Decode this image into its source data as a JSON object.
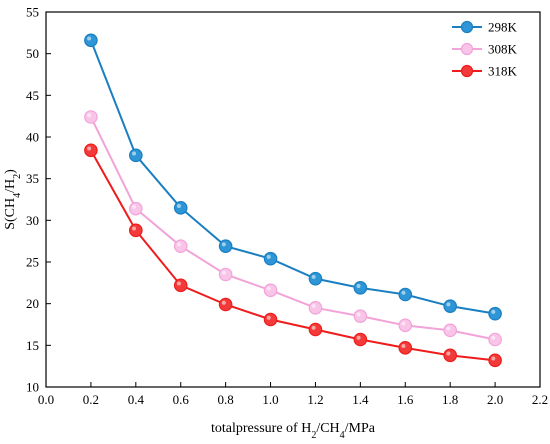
{
  "chart_data": {
    "type": "line",
    "x": [
      0.2,
      0.4,
      0.6,
      0.8,
      1.0,
      1.2,
      1.4,
      1.6,
      1.8,
      2.0
    ],
    "series": [
      {
        "name": "298K",
        "color": "#1a7fc1",
        "marker_fill": "#2e95d6",
        "values": [
          51.6,
          37.8,
          31.5,
          26.9,
          25.4,
          23.0,
          21.9,
          21.1,
          19.7,
          18.8
        ]
      },
      {
        "name": "308K",
        "color": "#f2a3d8",
        "marker_fill": "#f8c4e8",
        "values": [
          42.4,
          31.4,
          26.9,
          23.5,
          21.6,
          19.5,
          18.5,
          17.4,
          16.8,
          15.7
        ]
      },
      {
        "name": "318K",
        "color": "#ee1c1c",
        "marker_fill": "#f23a3a",
        "values": [
          38.4,
          28.8,
          22.2,
          19.9,
          18.1,
          16.9,
          15.7,
          14.7,
          13.8,
          13.2
        ]
      }
    ],
    "xlim": [
      0.0,
      2.2
    ],
    "ylim": [
      10,
      55
    ],
    "x_ticks": [
      "0.0",
      "0.2",
      "0.4",
      "0.6",
      "0.8",
      "1.0",
      "1.2",
      "1.4",
      "1.6",
      "1.8",
      "2.0",
      "2.2"
    ],
    "y_ticks": [
      "10",
      "15",
      "20",
      "25",
      "30",
      "35",
      "40",
      "45",
      "50",
      "55"
    ],
    "xlabel": {
      "parts": [
        {
          "t": "totalpressure of H"
        },
        {
          "t": "2",
          "sub": true
        },
        {
          "t": "/CH"
        },
        {
          "t": "4",
          "sub": true
        },
        {
          "t": "/MPa"
        }
      ]
    },
    "ylabel": {
      "parts": [
        {
          "t": "S(CH"
        },
        {
          "t": "4",
          "sub": true
        },
        {
          "t": "/H"
        },
        {
          "t": "2",
          "sub": true
        },
        {
          "t": ")"
        }
      ]
    },
    "legend_position": "top-right",
    "grid": false
  }
}
